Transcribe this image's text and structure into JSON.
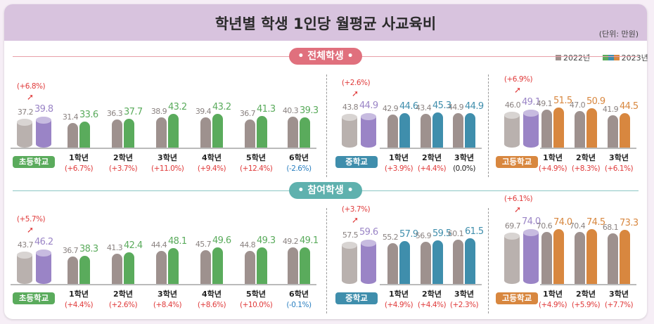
{
  "title": "학년별 학생 1인당 월평균 사교육비",
  "unit": "(단위: 만원)",
  "legend": {
    "y2022": "2022년",
    "y2023": "2023년"
  },
  "colors": {
    "gray": "#9e918e",
    "cyl_gray": "#b9b1ae",
    "purple": "#9a84c6",
    "elementary": "#5aab5c",
    "middle": "#3f8eac",
    "high": "#d8873f",
    "pos": "#e03a3a",
    "neg": "#2a7fc0",
    "zero": "#222222",
    "pill1": "#e0707d",
    "pill2": "#5fb1ae"
  },
  "chart_data": {
    "type": "bar",
    "ylabel": "",
    "sections": [
      {
        "title": "• 전체학생 •",
        "panels": [
          {
            "level": "elementary",
            "badge": "초등학교",
            "total": {
              "v2022": "37.2",
              "v2023": "39.8",
              "change": "(+6.8%)"
            },
            "grades": [
              {
                "label": "1학년",
                "v2022": "31.4",
                "v2023": "33.6",
                "change": "(+6.7%)"
              },
              {
                "label": "2학년",
                "v2022": "36.3",
                "v2023": "37.7",
                "change": "(+3.7%)"
              },
              {
                "label": "3학년",
                "v2022": "38.9",
                "v2023": "43.2",
                "change": "(+11.0%)"
              },
              {
                "label": "4학년",
                "v2022": "39.4",
                "v2023": "43.2",
                "change": "(+9.4%)"
              },
              {
                "label": "5학년",
                "v2022": "36.7",
                "v2023": "41.3",
                "change": "(+12.4%)"
              },
              {
                "label": "6학년",
                "v2022": "40.3",
                "v2023": "39.3",
                "change": "(-2.6%)"
              }
            ]
          },
          {
            "level": "middle",
            "badge": "중학교",
            "total": {
              "v2022": "43.8",
              "v2023": "44.9",
              "change": "(+2.6%)"
            },
            "grades": [
              {
                "label": "1학년",
                "v2022": "42.9",
                "v2023": "44.6",
                "change": "(+3.9%)"
              },
              {
                "label": "2학년",
                "v2022": "43.4",
                "v2023": "45.3",
                "change": "(+4.4%)"
              },
              {
                "label": "3학년",
                "v2022": "44.9",
                "v2023": "44.9",
                "change": "(0.0%)"
              }
            ]
          },
          {
            "level": "high",
            "badge": "고등학교",
            "total": {
              "v2022": "46.0",
              "v2023": "49.1",
              "change": "(+6.9%)"
            },
            "grades": [
              {
                "label": "1학년",
                "v2022": "49.1",
                "v2023": "51.5",
                "change": "(+4.9%)"
              },
              {
                "label": "2학년",
                "v2022": "47.0",
                "v2023": "50.9",
                "change": "(+8.3%)"
              },
              {
                "label": "3학년",
                "v2022": "41.9",
                "v2023": "44.5",
                "change": "(+6.1%)"
              }
            ]
          }
        ]
      },
      {
        "title": "• 참여학생 •",
        "panels": [
          {
            "level": "elementary",
            "badge": "초등학교",
            "total": {
              "v2022": "43.7",
              "v2023": "46.2",
              "change": "(+5.7%)"
            },
            "grades": [
              {
                "label": "1학년",
                "v2022": "36.7",
                "v2023": "38.3",
                "change": "(+4.4%)"
              },
              {
                "label": "2학년",
                "v2022": "41.3",
                "v2023": "42.4",
                "change": "(+2.6%)"
              },
              {
                "label": "3학년",
                "v2022": "44.4",
                "v2023": "48.1",
                "change": "(+8.4%)"
              },
              {
                "label": "4학년",
                "v2022": "45.7",
                "v2023": "49.6",
                "change": "(+8.6%)"
              },
              {
                "label": "5학년",
                "v2022": "44.8",
                "v2023": "49.3",
                "change": "(+10.0%)"
              },
              {
                "label": "6학년",
                "v2022": "49.2",
                "v2023": "49.1",
                "change": "(-0.1%)"
              }
            ]
          },
          {
            "level": "middle",
            "badge": "중학교",
            "total": {
              "v2022": "57.5",
              "v2023": "59.6",
              "change": "(+3.7%)"
            },
            "grades": [
              {
                "label": "1학년",
                "v2022": "55.2",
                "v2023": "57.9",
                "change": "(+4.9%)"
              },
              {
                "label": "2학년",
                "v2022": "56.9",
                "v2023": "59.5",
                "change": "(+4.4%)"
              },
              {
                "label": "3학년",
                "v2022": "60.1",
                "v2023": "61.5",
                "change": "(+2.3%)"
              }
            ]
          },
          {
            "level": "high",
            "badge": "고등학교",
            "total": {
              "v2022": "69.7",
              "v2023": "74.0",
              "change": "(+6.1%)"
            },
            "grades": [
              {
                "label": "1학년",
                "v2022": "70.6",
                "v2023": "74.0",
                "change": "(+4.9%)"
              },
              {
                "label": "2학년",
                "v2022": "70.4",
                "v2023": "74.5",
                "change": "(+5.9%)"
              },
              {
                "label": "3학년",
                "v2022": "68.1",
                "v2023": "73.3",
                "change": "(+7.7%)"
              }
            ]
          }
        ]
      }
    ]
  }
}
